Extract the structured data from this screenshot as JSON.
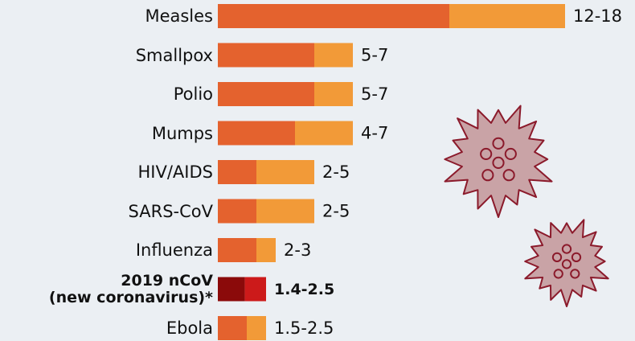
{
  "chart_data": {
    "type": "range_bar",
    "categories": [
      "Measles",
      "Smallpox",
      "Polio",
      "Mumps",
      "HIV/AIDS",
      "SARS-CoV",
      "Influenza",
      "2019 nCoV\n(new coronavirus)*",
      "Ebola"
    ],
    "low": [
      12,
      5,
      5,
      4,
      2,
      2,
      2,
      1.4,
      1.5
    ],
    "high": [
      18,
      7,
      7,
      7,
      5,
      5,
      3,
      2.5,
      2.5
    ],
    "value_labels": [
      "12-18",
      "5-7",
      "5-7",
      "4-7",
      "2-5",
      "2-5",
      "2-3",
      "1.4-2.5",
      "1.5-2.5"
    ],
    "colors_low": [
      "#e4622e",
      "#e4622e",
      "#e4622e",
      "#e4622e",
      "#e4622e",
      "#e4622e",
      "#e4622e",
      "#8b0a0a",
      "#e4622e"
    ],
    "colors_high": [
      "#f29a38",
      "#f29a38",
      "#f29a38",
      "#f29a38",
      "#f29a38",
      "#f29a38",
      "#f29a38",
      "#cc1a1a",
      "#f29a38"
    ],
    "emphasis": [
      false,
      false,
      false,
      false,
      false,
      false,
      false,
      true,
      false
    ],
    "xlim": [
      0,
      21.25
    ]
  }
}
